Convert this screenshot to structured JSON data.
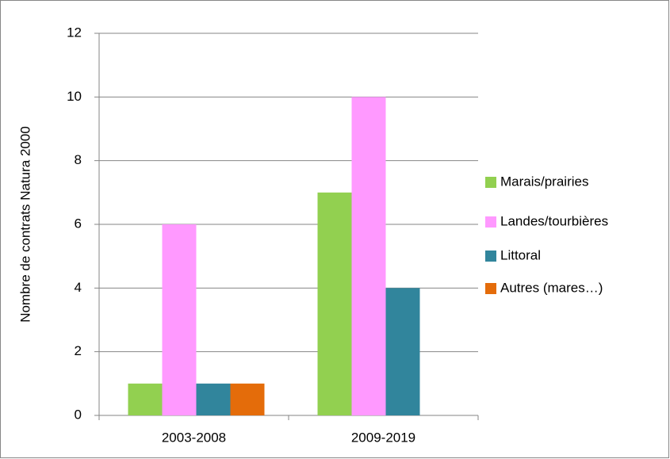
{
  "chart_data": {
    "type": "bar",
    "ylabel": "Nombre de contrats Natura 2000",
    "categories": [
      "2003-2008",
      "2009-2019"
    ],
    "series": [
      {
        "name": "Marais/prairies",
        "color": "#92d050",
        "values": [
          1,
          7
        ]
      },
      {
        "name": "Landes/tourbières",
        "color": "#ff99ff",
        "values": [
          6,
          10
        ]
      },
      {
        "name": "Littoral",
        "color": "#31859c",
        "values": [
          1,
          4
        ]
      },
      {
        "name": "Autres (mares…)",
        "color": "#e46c0a",
        "values": [
          1,
          0
        ]
      }
    ],
    "ylim": [
      0,
      12
    ],
    "yticks": [
      0,
      2,
      4,
      6,
      8,
      10,
      12
    ],
    "grid": true,
    "legend": "right"
  }
}
